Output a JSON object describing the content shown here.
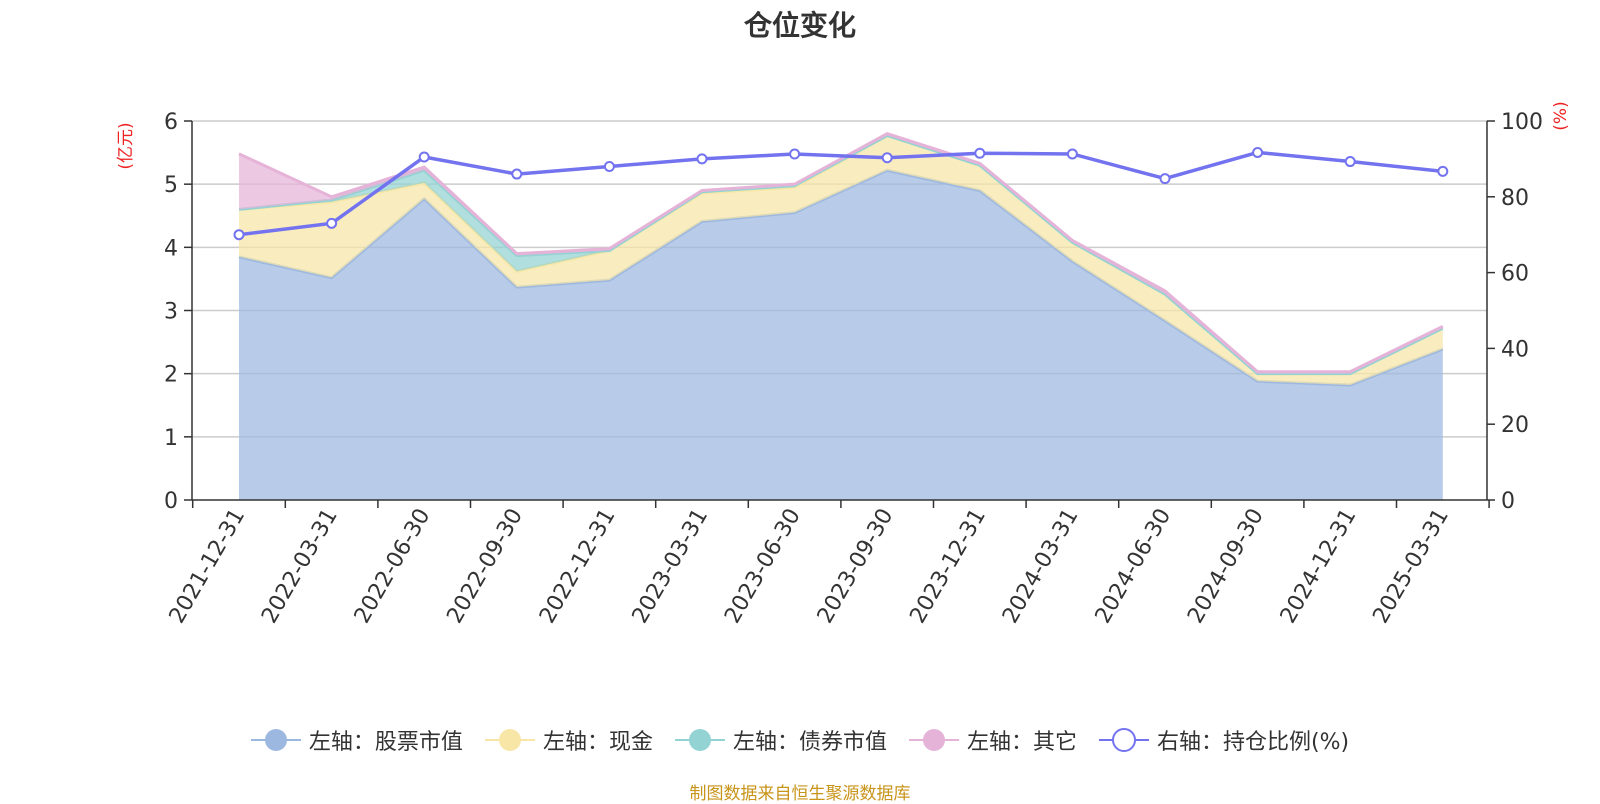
{
  "chart_data": {
    "type": "area",
    "title": "仓位变化",
    "left_axis_unit": "(亿元)",
    "right_axis_unit": "(%)",
    "ylim_left": [
      0,
      6
    ],
    "left_ticks": [
      0,
      1,
      2,
      3,
      4,
      5,
      6
    ],
    "ylim_right": [
      0,
      100
    ],
    "right_ticks": [
      0,
      20,
      40,
      60,
      80,
      100
    ],
    "grid": true,
    "legend_position": "bottom",
    "categories": [
      "2021-12-31",
      "2022-03-31",
      "2022-06-30",
      "2022-09-30",
      "2022-12-31",
      "2023-03-31",
      "2023-06-30",
      "2023-09-30",
      "2023-12-31",
      "2024-03-31",
      "2024-06-30",
      "2024-09-30",
      "2024-12-31",
      "2025-03-31"
    ],
    "series": [
      {
        "name": "左轴：股票市值",
        "axis": "left",
        "kind": "stacked-area",
        "color": "#9db8e0",
        "values": [
          3.85,
          3.52,
          4.77,
          3.37,
          3.48,
          4.41,
          4.55,
          5.22,
          4.9,
          3.78,
          2.84,
          1.88,
          1.82,
          2.39
        ]
      },
      {
        "name": "左轴：现金",
        "axis": "left",
        "kind": "stacked-area",
        "color": "#f7e6a6",
        "values": [
          0.75,
          1.2,
          0.25,
          0.25,
          0.47,
          0.45,
          0.4,
          0.55,
          0.4,
          0.3,
          0.42,
          0.12,
          0.18,
          0.33
        ]
      },
      {
        "name": "左轴：债券市值",
        "axis": "left",
        "kind": "stacked-area",
        "color": "#93d3d3",
        "values": [
          0,
          0.03,
          0.2,
          0.25,
          0,
          0.02,
          0.03,
          0,
          0,
          0,
          0,
          0,
          0,
          0
        ]
      },
      {
        "name": "左轴：其它",
        "axis": "left",
        "kind": "stacked-area",
        "color": "#e6b3d8",
        "values": [
          0.88,
          0.05,
          0.05,
          0.03,
          0.03,
          0.02,
          0.02,
          0.03,
          0.03,
          0.03,
          0.05,
          0.03,
          0.03,
          0.03
        ]
      },
      {
        "name": "右轴：持仓比例(%)",
        "axis": "right",
        "kind": "line",
        "color": "#7373f0",
        "values": [
          70.0,
          73.0,
          90.5,
          86.0,
          88.0,
          90.0,
          91.3,
          90.3,
          91.5,
          91.3,
          84.8,
          91.7,
          89.3,
          86.7
        ]
      }
    ]
  },
  "source_note": "制图数据来自恒生聚源数据库"
}
